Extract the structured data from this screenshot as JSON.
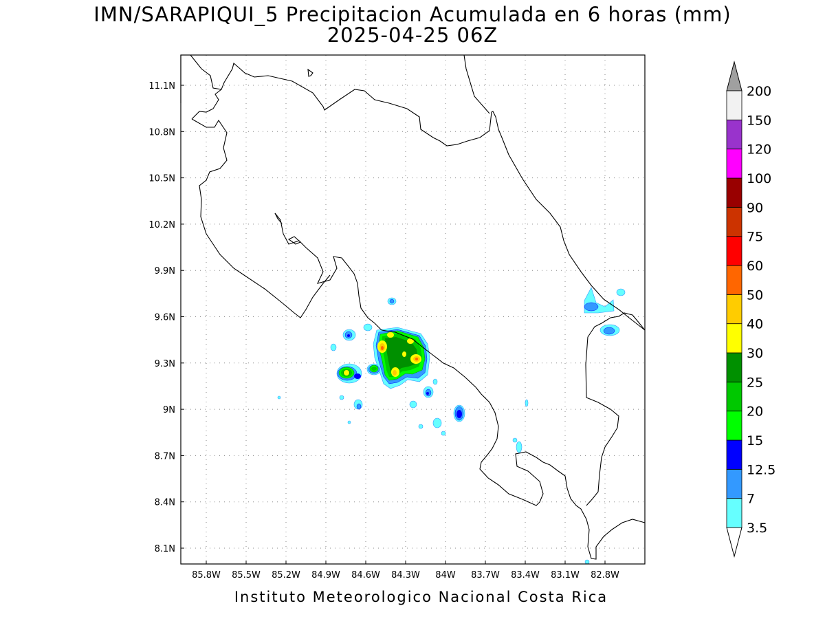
{
  "title": {
    "line1": "IMN/SARAPIQUI_5 Precipitacion Acumulada en 6 horas (mm)",
    "line2": "2025-04-25 06Z"
  },
  "footer": "Instituto Meteorologico Nacional Costa Rica",
  "map": {
    "lon_range": [
      -86.0,
      -82.8
    ],
    "lat_range": [
      8.0,
      11.3
    ],
    "lon_ticks": [
      {
        "value": -85.8,
        "label": "85.8W"
      },
      {
        "value": -85.5,
        "label": "85.5W"
      },
      {
        "value": -85.2,
        "label": "85.2W"
      },
      {
        "value": -84.9,
        "label": "84.9W"
      },
      {
        "value": -84.6,
        "label": "84.6W"
      },
      {
        "value": -84.3,
        "label": "84.3W"
      },
      {
        "value": -84.0,
        "label": "84W"
      },
      {
        "value": -83.7,
        "label": "83.7W"
      },
      {
        "value": -83.4,
        "label": "83.4W"
      },
      {
        "value": -83.1,
        "label": "83.1W"
      },
      {
        "value": -82.8,
        "label": "82.8W"
      }
    ],
    "lat_ticks": [
      {
        "value": 8.1,
        "label": "8.1N"
      },
      {
        "value": 8.4,
        "label": "8.4N"
      },
      {
        "value": 8.7,
        "label": "8.7N"
      },
      {
        "value": 9.0,
        "label": "9N"
      },
      {
        "value": 9.3,
        "label": "9.3N"
      },
      {
        "value": 9.6,
        "label": "9.6N"
      },
      {
        "value": 9.9,
        "label": "9.9N"
      },
      {
        "value": 10.2,
        "label": "10.2N"
      },
      {
        "value": 10.5,
        "label": "10.5N"
      },
      {
        "value": 10.8,
        "label": "10.8N"
      },
      {
        "value": 11.1,
        "label": "11.1N"
      }
    ],
    "grid": true
  },
  "colorbar": {
    "levels": [
      "3.5",
      "7",
      "12.5",
      "15",
      "20",
      "25",
      "30",
      "40",
      "50",
      "60",
      "75",
      "90",
      "100",
      "120",
      "150",
      "200"
    ],
    "colors": [
      "#66ffff",
      "#3399ff",
      "#0000ff",
      "#00ff00",
      "#00c800",
      "#009000",
      "#ffff00",
      "#ffcc00",
      "#ff6600",
      "#ff0000",
      "#cc3300",
      "#990000",
      "#ff00ff",
      "#9933cc",
      "#f2f2f2"
    ],
    "under_color": "#ffffff",
    "over_color": "#a0a0a0"
  },
  "precip_cells": [
    {
      "name": "main-cluster-north",
      "lon": -84.45,
      "lat": 9.42,
      "level": 6
    },
    {
      "name": "main-cluster-east",
      "lon": -84.28,
      "lat": 9.34,
      "level": 6
    },
    {
      "name": "main-cluster-south",
      "lon": -84.37,
      "lat": 9.24,
      "level": 6
    },
    {
      "name": "west-cell",
      "lon": -84.77,
      "lat": 9.24,
      "level": 6
    },
    {
      "name": "caribbean-cell",
      "lon": -82.98,
      "lat": 9.66,
      "level": 1
    },
    {
      "name": "southeast-cell",
      "lon": -83.89,
      "lat": 8.95,
      "level": 2
    }
  ]
}
